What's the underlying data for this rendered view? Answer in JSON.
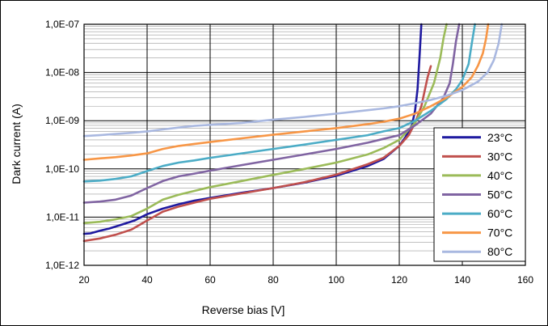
{
  "chart_data": {
    "type": "line",
    "title": "",
    "xlabel": "Reverse bias [V]",
    "ylabel": "Dark current  (A)",
    "xlim": [
      20,
      160
    ],
    "ylim": [
      1e-12,
      1e-07
    ],
    "yscale": "log",
    "x_ticks": [
      "20",
      "40",
      "60",
      "80",
      "100",
      "120",
      "140",
      "160"
    ],
    "y_ticks": [
      "1,0E-12",
      "1,0E-11",
      "1,0E-10",
      "1,0E-09",
      "1,0E-08",
      "1,0E-07"
    ],
    "grid": true,
    "legend_position": "right",
    "series": [
      {
        "name": "23°C",
        "color": "#1f1aa0",
        "x": [
          20,
          22,
          25,
          28,
          32,
          36,
          40,
          45,
          50,
          55,
          60,
          70,
          80,
          90,
          100,
          110,
          115,
          120,
          122,
          124,
          125,
          125.8,
          126.5,
          127
        ],
        "y": [
          4.5e-12,
          4.6e-12,
          5.2e-12,
          5.8e-12,
          7e-12,
          8.5e-12,
          1.15e-11,
          1.5e-11,
          1.85e-11,
          2.2e-11,
          2.5e-11,
          3.2e-11,
          4e-11,
          5.2e-11,
          7.2e-11,
          1.15e-10,
          1.6e-10,
          3e-10,
          4.6e-10,
          8e-10,
          1.6e-09,
          4.5e-09,
          2.5e-08,
          1e-07
        ]
      },
      {
        "name": "30°C",
        "color": "#c0504d",
        "x": [
          20,
          25,
          30,
          35,
          40,
          45,
          50,
          55,
          60,
          70,
          80,
          90,
          100,
          110,
          115,
          120,
          123,
          125,
          127,
          128,
          129,
          130
        ],
        "y": [
          3.2e-12,
          3.6e-12,
          4.3e-12,
          5.5e-12,
          8.5e-12,
          1.3e-11,
          1.65e-11,
          2e-11,
          2.4e-11,
          3.1e-11,
          4e-11,
          5.3e-11,
          7.6e-11,
          1.25e-10,
          1.7e-10,
          3e-10,
          5e-10,
          9e-10,
          2e-09,
          4e-09,
          8e-09,
          1.35e-08
        ]
      },
      {
        "name": "40°C",
        "color": "#9bbb59",
        "x": [
          20,
          25,
          30,
          35,
          40,
          45,
          50,
          55,
          60,
          70,
          80,
          90,
          100,
          110,
          115,
          120,
          125,
          128,
          131,
          133,
          134,
          135
        ],
        "y": [
          7.5e-12,
          8e-12,
          9e-12,
          1.05e-11,
          1.5e-11,
          2.3e-11,
          2.9e-11,
          3.5e-11,
          4.2e-11,
          5.6e-11,
          7.5e-11,
          1e-10,
          1.35e-10,
          2e-10,
          2.7e-10,
          4e-10,
          9e-10,
          2e-09,
          6e-09,
          2e-08,
          5e-08,
          1e-07
        ]
      },
      {
        "name": "50°C",
        "color": "#8064a2",
        "x": [
          20,
          25,
          30,
          35,
          40,
          45,
          50,
          55,
          60,
          70,
          80,
          90,
          100,
          110,
          115,
          120,
          125,
          130,
          134,
          136,
          137,
          138,
          139
        ],
        "y": [
          2e-11,
          2.1e-11,
          2.3e-11,
          2.8e-11,
          4e-11,
          5.6e-11,
          7e-11,
          8e-11,
          9.2e-11,
          1.2e-10,
          1.55e-10,
          2e-10,
          2.6e-10,
          3.5e-10,
          4.2e-10,
          5e-10,
          8e-10,
          1.4e-09,
          3e-09,
          6e-09,
          1.5e-08,
          4.5e-08,
          1e-07
        ]
      },
      {
        "name": "60°C",
        "color": "#4bacc6",
        "x": [
          20,
          25,
          30,
          35,
          40,
          45,
          50,
          55,
          60,
          70,
          80,
          90,
          100,
          110,
          115,
          120,
          125,
          130,
          135,
          138,
          140,
          142,
          143,
          144
        ],
        "y": [
          5.5e-11,
          5.7e-11,
          6.2e-11,
          7e-11,
          9e-11,
          1.15e-10,
          1.35e-10,
          1.5e-10,
          1.7e-10,
          2.1e-10,
          2.6e-10,
          3.2e-10,
          4e-10,
          5e-10,
          6e-10,
          7e-10,
          1e-09,
          1.6e-09,
          2.8e-09,
          4.5e-09,
          7e-09,
          1.5e-08,
          4e-08,
          1e-07
        ]
      },
      {
        "name": "70°C",
        "color": "#f79646",
        "x": [
          20,
          25,
          30,
          35,
          40,
          45,
          50,
          55,
          60,
          70,
          80,
          90,
          100,
          110,
          115,
          120,
          125,
          130,
          135,
          140,
          143,
          145,
          146.5,
          147.5,
          148.2
        ],
        "y": [
          1.55e-10,
          1.65e-10,
          1.75e-10,
          1.9e-10,
          2.1e-10,
          2.6e-10,
          3e-10,
          3.3e-10,
          3.6e-10,
          4.3e-10,
          5.1e-10,
          6e-10,
          7e-10,
          8.5e-10,
          9.5e-10,
          1.1e-09,
          1.4e-09,
          2e-09,
          3e-09,
          5e-09,
          8e-09,
          1.4e-08,
          2.5e-08,
          5e-08,
          1e-07
        ]
      },
      {
        "name": "80°C",
        "color": "#a9b8e0",
        "x": [
          20,
          25,
          30,
          35,
          40,
          45,
          50,
          55,
          60,
          70,
          80,
          90,
          100,
          110,
          115,
          120,
          125,
          130,
          135,
          140,
          145,
          148,
          150,
          151.5,
          152.5
        ],
        "y": [
          4.8e-10,
          5e-10,
          5.3e-10,
          5.6e-10,
          6e-10,
          6.6e-10,
          7.2e-10,
          7.8e-10,
          8.2e-10,
          9e-10,
          1.05e-09,
          1.2e-09,
          1.4e-09,
          1.65e-09,
          1.8e-09,
          2e-09,
          2.3e-09,
          2.7e-09,
          3.3e-09,
          4.3e-09,
          6.5e-09,
          1e-08,
          1.8e-08,
          4e-08,
          1e-07
        ]
      }
    ]
  }
}
